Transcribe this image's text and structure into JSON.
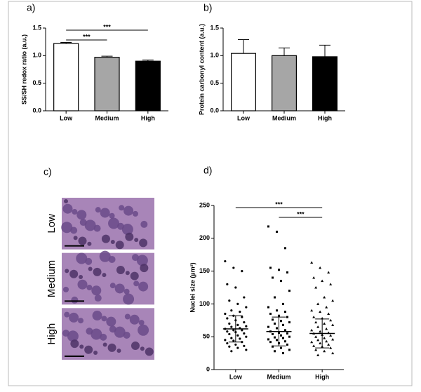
{
  "chart_data": [
    {
      "type": "bar",
      "title": "a)",
      "ylabel": "SS/SH redox ratio (a.u.)",
      "categories": [
        "Low",
        "Medium",
        "High"
      ],
      "values": [
        1.22,
        0.97,
        0.9
      ],
      "errors": [
        0.02,
        0.02,
        0.02
      ],
      "colors": [
        "#ffffff",
        "#a6a6a6",
        "#000000"
      ],
      "ylim": [
        0,
        1.5
      ],
      "yticks": [
        {
          "value": 0,
          "label": "0.0"
        },
        {
          "value": 0.5,
          "label": "0.5"
        },
        {
          "value": 1,
          "label": "1.0"
        },
        {
          "value": 1.5,
          "label": "1.5"
        }
      ],
      "significance": [
        {
          "from": 0,
          "to": 2,
          "label": "***"
        },
        {
          "from": 0,
          "to": 1,
          "label": "***"
        }
      ]
    },
    {
      "type": "bar",
      "title": "b)",
      "ylabel": "Protein carbonyl content (a.u.)",
      "categories": [
        "Low",
        "Medium",
        "High"
      ],
      "values": [
        1.04,
        1.0,
        0.98
      ],
      "errors": [
        0.25,
        0.14,
        0.21
      ],
      "colors": [
        "#ffffff",
        "#a6a6a6",
        "#000000"
      ],
      "ylim": [
        0,
        1.5
      ],
      "yticks": [
        {
          "value": 0,
          "label": "0.0"
        },
        {
          "value": 0.5,
          "label": "0.5"
        },
        {
          "value": 1,
          "label": "1.0"
        },
        {
          "value": 1.5,
          "label": "1.5"
        }
      ]
    },
    {
      "type": "image",
      "title": "c)",
      "categories": [
        "Low",
        "Medium",
        "High"
      ]
    },
    {
      "type": "dotplot",
      "title": "d)",
      "ylabel": "Nuclei size (µm²)",
      "categories": [
        "Low",
        "Medium",
        "High"
      ],
      "markers": [
        "circle",
        "square",
        "triangle"
      ],
      "values": [
        [
          165,
          155,
          150,
          130,
          125,
          110,
          105,
          100,
          95,
          90,
          88,
          85,
          82,
          80,
          78,
          75,
          72,
          70,
          68,
          66,
          65,
          63,
          62,
          60,
          60,
          58,
          57,
          55,
          54,
          52,
          50,
          48,
          47,
          45,
          44,
          42,
          40,
          38,
          36,
          35,
          33,
          30,
          28
        ],
        [
          218,
          210,
          185,
          155,
          152,
          148,
          140,
          135,
          120,
          110,
          100,
          95,
          90,
          88,
          85,
          82,
          80,
          76,
          74,
          72,
          70,
          68,
          65,
          63,
          60,
          58,
          56,
          55,
          54,
          52,
          50,
          49,
          48,
          46,
          45,
          43,
          42,
          40,
          38,
          35,
          33,
          30,
          28,
          25
        ],
        [
          163,
          155,
          148,
          140,
          135,
          130,
          125,
          110,
          105,
          100,
          95,
          90,
          88,
          85,
          80,
          78,
          75,
          72,
          70,
          68,
          65,
          62,
          60,
          58,
          56,
          55,
          53,
          52,
          50,
          48,
          46,
          45,
          43,
          42,
          40,
          38,
          36,
          35,
          33,
          30,
          28,
          25,
          22
        ]
      ],
      "means": [
        62,
        58,
        55
      ],
      "sds": [
        20,
        22,
        22
      ],
      "ylim": [
        0,
        250
      ],
      "yticks": [
        0,
        50,
        100,
        150,
        200,
        250
      ],
      "significance": [
        {
          "from": 0,
          "to": 2,
          "label": "***"
        },
        {
          "from": 1,
          "to": 2,
          "label": "***"
        }
      ]
    }
  ]
}
